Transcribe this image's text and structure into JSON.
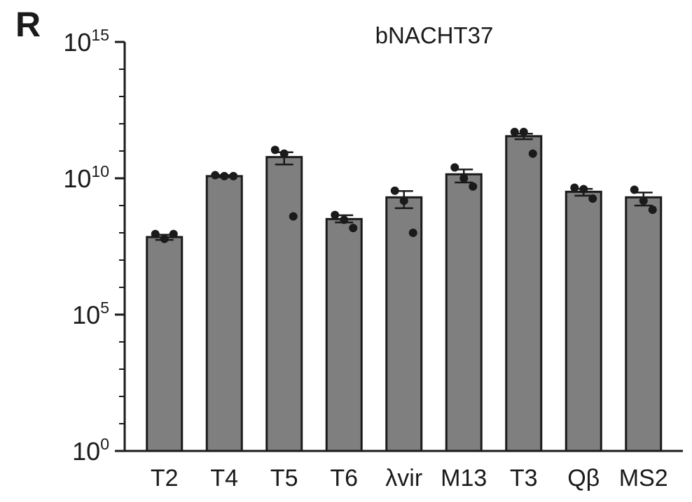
{
  "panel_letter": "R",
  "chart_data": {
    "type": "bar",
    "title": "bNACHT37",
    "xlabel": "",
    "ylabel": "",
    "yscale": "log",
    "ylim": [
      1,
      1000000000000000.0
    ],
    "y_ticks": [
      {
        "value": 1,
        "base": "10",
        "exp": "0"
      },
      {
        "value": 100000,
        "base": "10",
        "exp": "5"
      },
      {
        "value": 10000000000,
        "base": "10",
        "exp": "10"
      },
      {
        "value": 1000000000000000.0,
        "base": "10",
        "exp": "15"
      }
    ],
    "categories": [
      "T2",
      "T4",
      "T5",
      "T6",
      "λvir",
      "M13",
      "T3",
      "Qβ",
      "MS2"
    ],
    "series": [
      {
        "values": [
          70000000.0,
          12000000000.0,
          60000000000.0,
          320000000.0,
          2000000000.0,
          14000000000.0,
          350000000000.0,
          3200000000.0,
          2000000000.0
        ],
        "error_low": [
          55000000.0,
          11000000000.0,
          32000000000.0,
          240000000.0,
          800000000.0,
          7000000000.0,
          270000000000.0,
          2300000000.0,
          1000000000.0
        ],
        "error_high": [
          85000000.0,
          13000000000.0,
          90000000000.0,
          440000000.0,
          3400000000.0,
          21000000000.0,
          430000000000.0,
          4100000000.0,
          3000000000.0
        ],
        "points": [
          [
            90000000.0,
            60000000.0,
            90000000.0
          ],
          [
            13000000000.0,
            12000000000.0,
            12000000000.0
          ],
          [
            110000000000.0,
            80000000000.0,
            400000000.0
          ],
          [
            450000000.0,
            300000000.0,
            150000000.0
          ],
          [
            3500000000.0,
            1500000000.0,
            100000000.0
          ],
          [
            25000000000.0,
            10000000000.0,
            5000000000.0
          ],
          [
            500000000000.0,
            500000000000.0,
            80000000000.0
          ],
          [
            4500000000.0,
            4000000000.0,
            1800000000.0
          ],
          [
            3800000000.0,
            1500000000.0,
            700000000.0
          ]
        ]
      }
    ],
    "colors": {
      "bar": "#7f7f7f",
      "outline": "#1a1a1a",
      "points": "#1a1a1a",
      "axis": "#1a1a1a"
    },
    "grid": false,
    "legend": "none"
  }
}
